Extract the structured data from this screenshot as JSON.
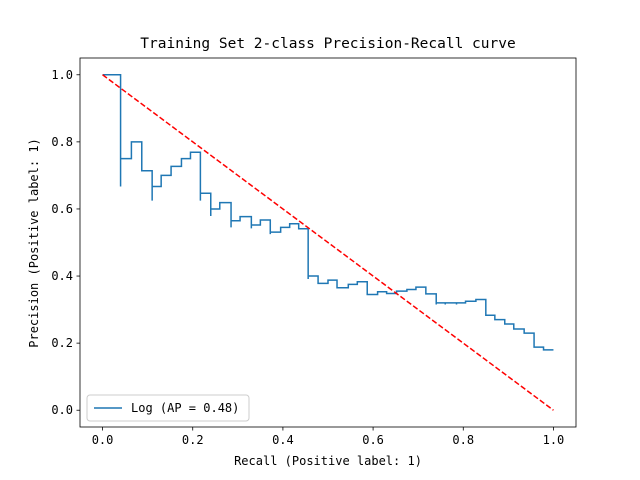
{
  "chart_data": {
    "type": "line",
    "title": "Training Set 2-class Precision-Recall curve",
    "xlabel": "Recall (Positive label: 1)",
    "ylabel": "Precision (Positive label: 1)",
    "xlim": [
      -0.05,
      1.05
    ],
    "ylim": [
      -0.05,
      1.05
    ],
    "xticks": [
      0.0,
      0.2,
      0.4,
      0.6,
      0.8,
      1.0
    ],
    "yticks": [
      0.0,
      0.2,
      0.4,
      0.6,
      0.8,
      1.0
    ],
    "xtick_labels": [
      "0.0",
      "0.2",
      "0.4",
      "0.6",
      "0.8",
      "1.0"
    ],
    "ytick_labels": [
      "0.0",
      "0.2",
      "0.4",
      "0.6",
      "0.8",
      "1.0"
    ],
    "grid": false,
    "legend_placement": "lower-left",
    "series": [
      {
        "name": "Log (AP = 0.48)",
        "color": "#1f77b4",
        "style": "step",
        "points": [
          [
            0.0,
            1.0
          ],
          [
            0.04,
            1.0
          ],
          [
            0.04,
            0.667
          ],
          [
            0.04,
            0.75
          ],
          [
            0.064,
            0.75
          ],
          [
            0.064,
            0.8
          ],
          [
            0.087,
            0.8
          ],
          [
            0.087,
            0.714
          ],
          [
            0.11,
            0.714
          ],
          [
            0.11,
            0.625
          ],
          [
            0.11,
            0.667
          ],
          [
            0.13,
            0.667
          ],
          [
            0.13,
            0.7
          ],
          [
            0.152,
            0.7
          ],
          [
            0.152,
            0.727
          ],
          [
            0.175,
            0.727
          ],
          [
            0.175,
            0.75
          ],
          [
            0.195,
            0.75
          ],
          [
            0.195,
            0.769
          ],
          [
            0.217,
            0.769
          ],
          [
            0.217,
            0.625
          ],
          [
            0.217,
            0.647
          ],
          [
            0.24,
            0.647
          ],
          [
            0.24,
            0.579
          ],
          [
            0.24,
            0.6
          ],
          [
            0.26,
            0.6
          ],
          [
            0.26,
            0.619
          ],
          [
            0.285,
            0.619
          ],
          [
            0.285,
            0.545
          ],
          [
            0.285,
            0.565
          ],
          [
            0.305,
            0.565
          ],
          [
            0.305,
            0.577
          ],
          [
            0.33,
            0.577
          ],
          [
            0.33,
            0.542
          ],
          [
            0.33,
            0.552
          ],
          [
            0.35,
            0.552
          ],
          [
            0.35,
            0.567
          ],
          [
            0.372,
            0.567
          ],
          [
            0.372,
            0.525
          ],
          [
            0.372,
            0.531
          ],
          [
            0.395,
            0.531
          ],
          [
            0.395,
            0.545
          ],
          [
            0.415,
            0.545
          ],
          [
            0.415,
            0.556
          ],
          [
            0.435,
            0.556
          ],
          [
            0.435,
            0.541
          ],
          [
            0.456,
            0.541
          ],
          [
            0.456,
            0.391
          ],
          [
            0.456,
            0.4
          ],
          [
            0.478,
            0.4
          ],
          [
            0.478,
            0.378
          ],
          [
            0.5,
            0.378
          ],
          [
            0.5,
            0.388
          ],
          [
            0.52,
            0.388
          ],
          [
            0.52,
            0.365
          ],
          [
            0.545,
            0.365
          ],
          [
            0.545,
            0.375
          ],
          [
            0.565,
            0.375
          ],
          [
            0.565,
            0.383
          ],
          [
            0.587,
            0.383
          ],
          [
            0.587,
            0.345
          ],
          [
            0.61,
            0.345
          ],
          [
            0.61,
            0.353
          ],
          [
            0.63,
            0.353
          ],
          [
            0.63,
            0.348
          ],
          [
            0.652,
            0.348
          ],
          [
            0.652,
            0.355
          ],
          [
            0.675,
            0.355
          ],
          [
            0.675,
            0.36
          ],
          [
            0.695,
            0.36
          ],
          [
            0.695,
            0.367
          ],
          [
            0.717,
            0.367
          ],
          [
            0.717,
            0.347
          ],
          [
            0.74,
            0.347
          ],
          [
            0.74,
            0.315
          ],
          [
            0.74,
            0.32
          ],
          [
            0.76,
            0.32
          ],
          [
            0.76,
            0.315
          ],
          [
            0.76,
            0.32
          ],
          [
            0.785,
            0.32
          ],
          [
            0.785,
            0.315
          ],
          [
            0.785,
            0.32
          ],
          [
            0.805,
            0.32
          ],
          [
            0.805,
            0.325
          ],
          [
            0.828,
            0.325
          ],
          [
            0.828,
            0.33
          ],
          [
            0.85,
            0.33
          ],
          [
            0.85,
            0.283
          ],
          [
            0.87,
            0.283
          ],
          [
            0.87,
            0.27
          ],
          [
            0.892,
            0.27
          ],
          [
            0.892,
            0.257
          ],
          [
            0.912,
            0.257
          ],
          [
            0.912,
            0.242
          ],
          [
            0.935,
            0.242
          ],
          [
            0.935,
            0.23
          ],
          [
            0.957,
            0.23
          ],
          [
            0.957,
            0.188
          ],
          [
            0.978,
            0.188
          ],
          [
            0.978,
            0.18
          ],
          [
            1.0,
            0.18
          ]
        ]
      },
      {
        "color": "#ff0000",
        "style": "dashed",
        "points": [
          [
            0.0,
            1.0
          ],
          [
            1.0,
            0.0
          ]
        ]
      }
    ]
  }
}
